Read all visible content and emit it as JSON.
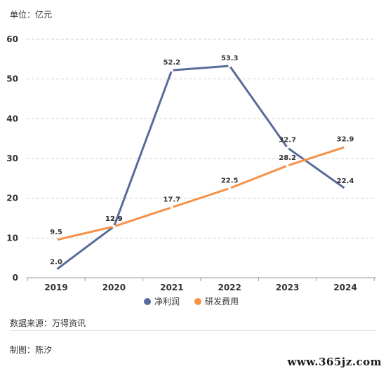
{
  "unit_label": "单位：亿元",
  "footer": {
    "source": "数据来源：万得资讯",
    "author": "制图：陈汐"
  },
  "watermark": "www.365jz.com",
  "chart_data": {
    "type": "line",
    "x": [
      "2019",
      "2020",
      "2021",
      "2022",
      "2023",
      "2024"
    ],
    "series": [
      {
        "name": "净利润",
        "values": [
          2.0,
          12.9,
          52.2,
          53.3,
          32.7,
          22.4
        ],
        "color": "#5a6b9a"
      },
      {
        "name": "研发费用",
        "values": [
          9.5,
          12.9,
          17.7,
          22.5,
          28.2,
          32.9
        ],
        "color": "#f5924a"
      }
    ],
    "data_labels": [
      [
        "2.0",
        "12.9",
        "52.2",
        "53.3",
        "32.7",
        "22.4"
      ],
      [
        "9.5",
        "12.9",
        "17.7",
        "22.5",
        "28.2",
        "32.9"
      ]
    ],
    "y_ticks": [
      0,
      10,
      20,
      30,
      40,
      50,
      60
    ],
    "ylim": [
      0,
      60
    ],
    "grid": true,
    "legend": "bottom-center",
    "title": "",
    "xlabel": "",
    "ylabel": ""
  }
}
